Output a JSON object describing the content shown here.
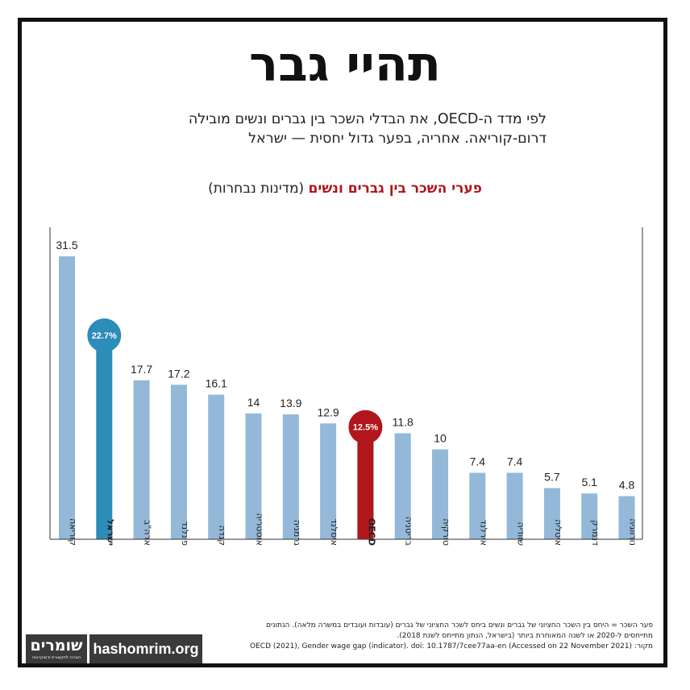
{
  "title": "תהיי גבר",
  "subtitle_line1": "לפי מדד ה-OECD, את הבדלי השכר בין גברים ונשים מובילה",
  "subtitle_line2": "דרום-קוריאה. אחריה, בפער גדול יחסית — ישראל",
  "chart_title_red": "פערי השכר בין גברים ונשים",
  "chart_title_rest": "(מדינות נבחרות)",
  "colors": {
    "bar": "#93b8d8",
    "israel": "#2c8db8",
    "oecd": "#b0161c",
    "title_red": "#b0161c"
  },
  "chart_data": {
    "type": "bar",
    "title": "פערי השכר בין גברים ונשים (מדינות נבחרות)",
    "categories": [
      "קוריאה",
      "ישראל",
      "ארה\"ב",
      "פינלנד",
      "קנדה",
      "אוסטריה",
      "גרמניה",
      "איסלנד",
      "OECD",
      "בריטניה",
      "טורקיה",
      "אירלנד",
      "שוודיה",
      "איטליה",
      "דנמרק",
      "נורווגיה"
    ],
    "values": [
      31.5,
      22.7,
      17.7,
      17.2,
      16.1,
      14,
      13.9,
      12.9,
      12.5,
      11.8,
      10,
      7.4,
      7.4,
      5.7,
      5.1,
      4.8
    ],
    "value_labels": [
      "31.5",
      "22.7%",
      "17.7",
      "17.2",
      "16.1",
      "14",
      "13.9",
      "12.9",
      "12.5%",
      "11.8",
      "10",
      "7.4",
      "7.4",
      "5.7",
      "5.1",
      "4.8"
    ],
    "highlight": {
      "ישראל": "israel",
      "OECD": "oecd"
    },
    "ylim": [
      0,
      31.5
    ],
    "grid": false
  },
  "notes": {
    "line1": "פער השכר = היחס בין השכר החציוני של גברים ונשים ביחס לשכר החציוני של גברים (עובדות ועובדים במשרה מלאה). הנתונים",
    "line2": "מתייחסים ל-2020 או לשנה המאוחרת ביותר (בישראל, הנתון מתייחס לשנת 2018).",
    "line3": "מקור: OECD (2021), Gender wage gap (indicator). doi: 10.1787/7cee77aa-en (Accessed on 22 November 2021)"
  },
  "logo": {
    "name": "שומרים",
    "tagline": "המרכז לתקשורת ודמוקרטיה"
  },
  "site": "hashomrim.org"
}
